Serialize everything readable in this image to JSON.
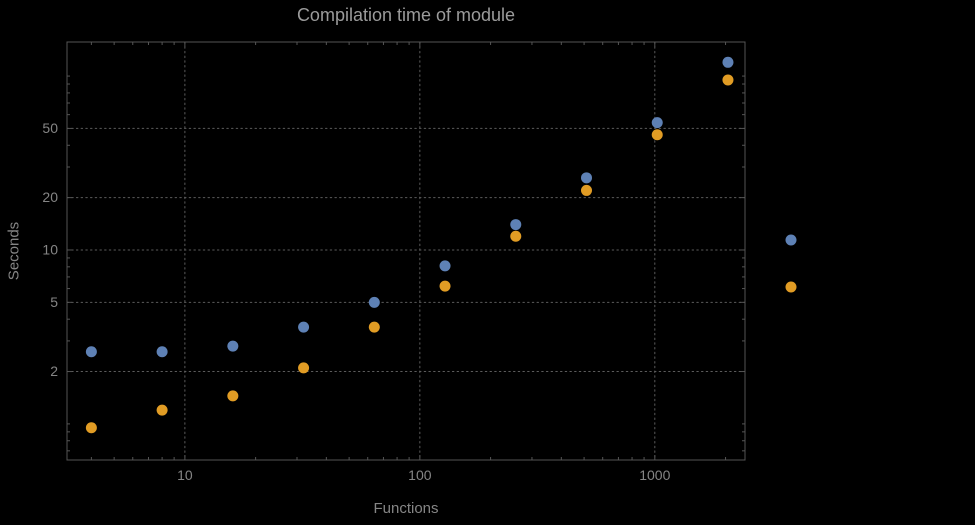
{
  "chart_data": {
    "type": "scatter",
    "title": "Compilation time of module",
    "xlabel": "Functions",
    "ylabel": "Seconds",
    "x_scale": "log",
    "y_scale": "log",
    "xlim": [
      3.15,
      2420
    ],
    "ylim": [
      0.62,
      157
    ],
    "grid": {
      "show": true,
      "style": "dotted"
    },
    "x_ticks": [
      {
        "value": 10,
        "label": "10"
      },
      {
        "value": 100,
        "label": "100"
      },
      {
        "value": 1000,
        "label": "1000"
      }
    ],
    "y_ticks": [
      {
        "value": 2,
        "label": "2"
      },
      {
        "value": 5,
        "label": "5"
      },
      {
        "value": 10,
        "label": "10"
      },
      {
        "value": 20,
        "label": "20"
      },
      {
        "value": 50,
        "label": "50"
      }
    ],
    "x": [
      4,
      8,
      16,
      32,
      64,
      128,
      256,
      512,
      1024,
      2048
    ],
    "series": [
      {
        "name": "blue-series",
        "color": "#5e81b5",
        "values": [
          2.6,
          2.6,
          2.8,
          3.6,
          5.0,
          8.1,
          14,
          26,
          54,
          120
        ]
      },
      {
        "name": "orange-series",
        "color": "#e19c24",
        "values": [
          0.95,
          1.2,
          1.45,
          2.1,
          3.6,
          6.2,
          12,
          22,
          46,
          95
        ]
      }
    ],
    "legend": {
      "position": "outside-right",
      "labels_visible": false,
      "marker_series_order": [
        "blue-series",
        "orange-series"
      ]
    },
    "colors": {
      "background": "#000000",
      "tick_text": "#858585",
      "title_text": "#9b9b9b",
      "frame": "#555555",
      "grid": "#5c5c5c"
    }
  }
}
